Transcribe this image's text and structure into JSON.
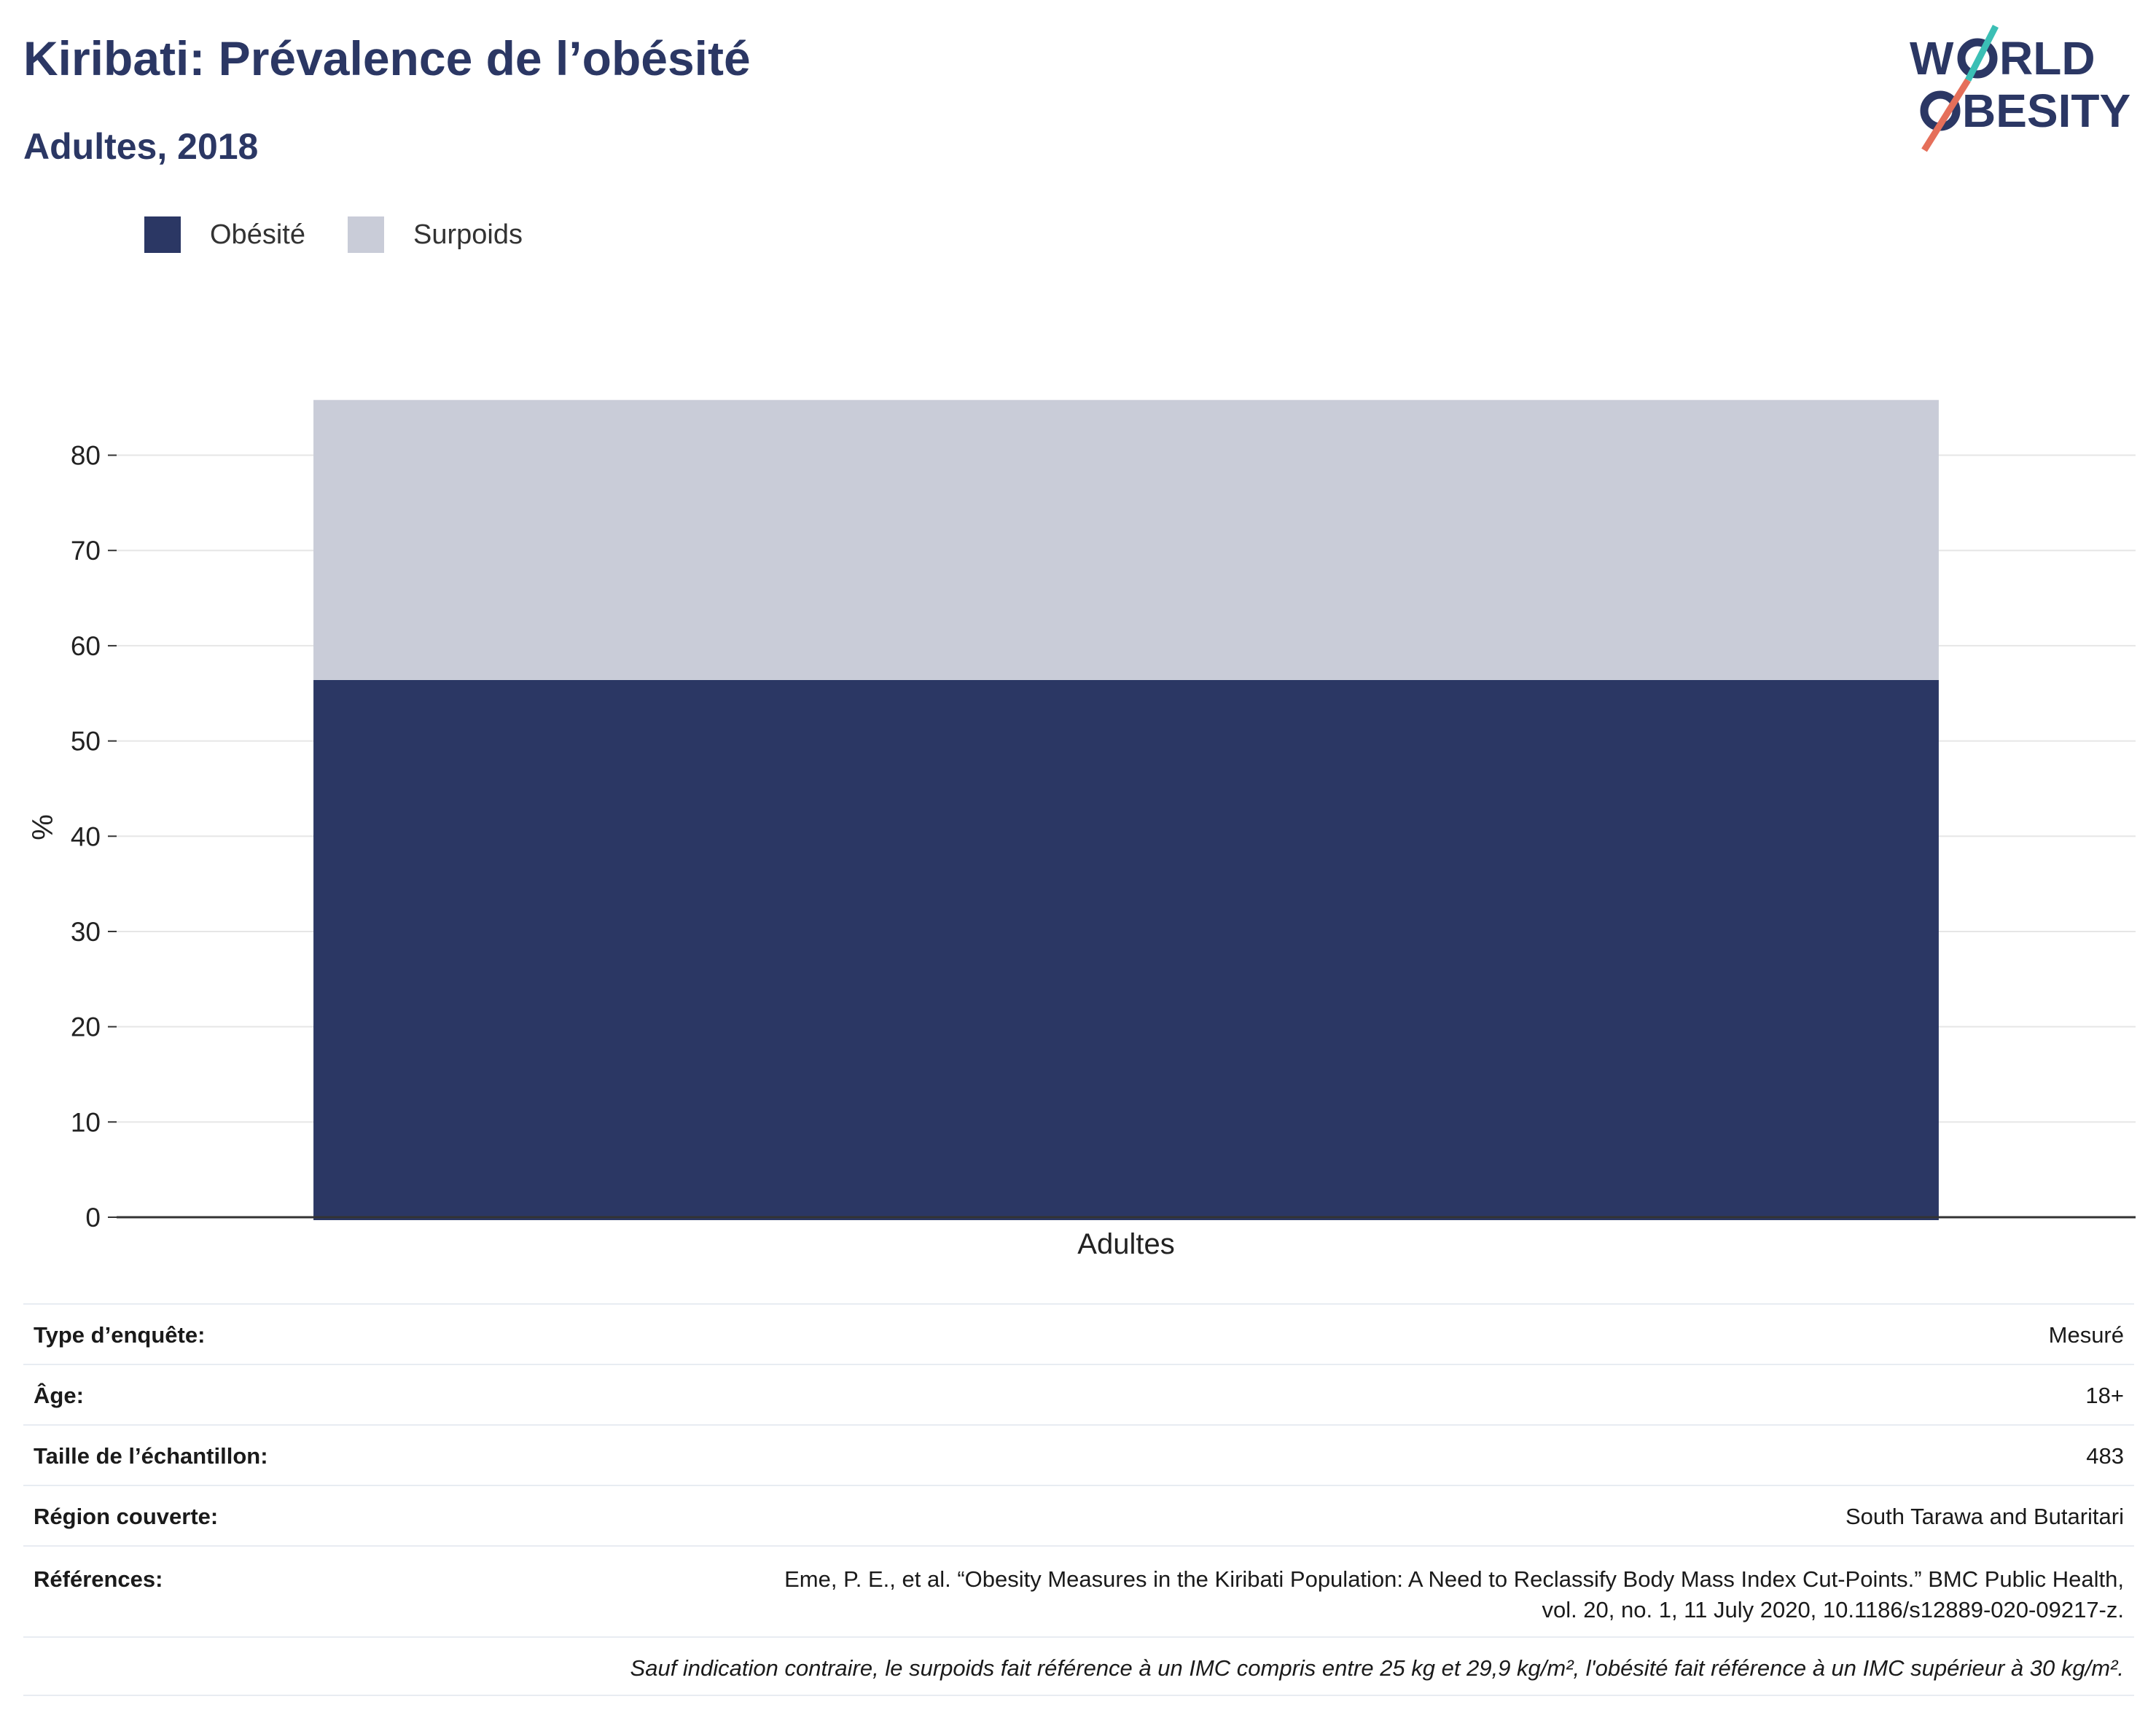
{
  "header": {
    "title": "Kiribati: Prévalence de l’obésité",
    "subtitle": "Adultes, 2018"
  },
  "logo": {
    "line1": "WORLD",
    "line2": "OBESITY"
  },
  "legend": [
    {
      "label": "Obésité",
      "color": "#2b3764"
    },
    {
      "label": "Surpoids",
      "color": "#c9ccd8"
    }
  ],
  "chart_data": {
    "type": "bar",
    "stacked": true,
    "categories": [
      "Adultes"
    ],
    "series": [
      {
        "name": "Obésité",
        "values": [
          56.4
        ],
        "color": "#2b3764"
      },
      {
        "name": "Surpoids",
        "values": [
          29.4
        ],
        "color": "#c9ccd8"
      }
    ],
    "ylabel": "%",
    "ylim": [
      0,
      88
    ],
    "yticks": [
      0,
      10,
      20,
      30,
      40,
      50,
      60,
      70,
      80
    ],
    "grid": true,
    "legend_position": "top-left"
  },
  "info": {
    "survey_type": {
      "label": "Type d’enquête:",
      "value": "Mesuré"
    },
    "age": {
      "label": "Âge:",
      "value": "18+"
    },
    "sample_size": {
      "label": "Taille de l’échantillon:",
      "value": "483"
    },
    "region": {
      "label": "Région couverte:",
      "value": "South Tarawa and Butaritari"
    },
    "references": {
      "label": "Références:",
      "line1": "Eme, P. E., et al. “Obesity Measures in the Kiribati Population: A Need to Reclassify Body Mass Index Cut-Points.” BMC Public Health,",
      "line2": "vol. 20, no. 1, 11 July 2020, 10.1186/s12889-020-09217-z."
    },
    "note": "Sauf indication contraire, le surpoids fait référence à un IMC compris entre 25 kg et 29,9 kg/m², l'obésité fait référence à un IMC supérieur à 30 kg/m²."
  }
}
